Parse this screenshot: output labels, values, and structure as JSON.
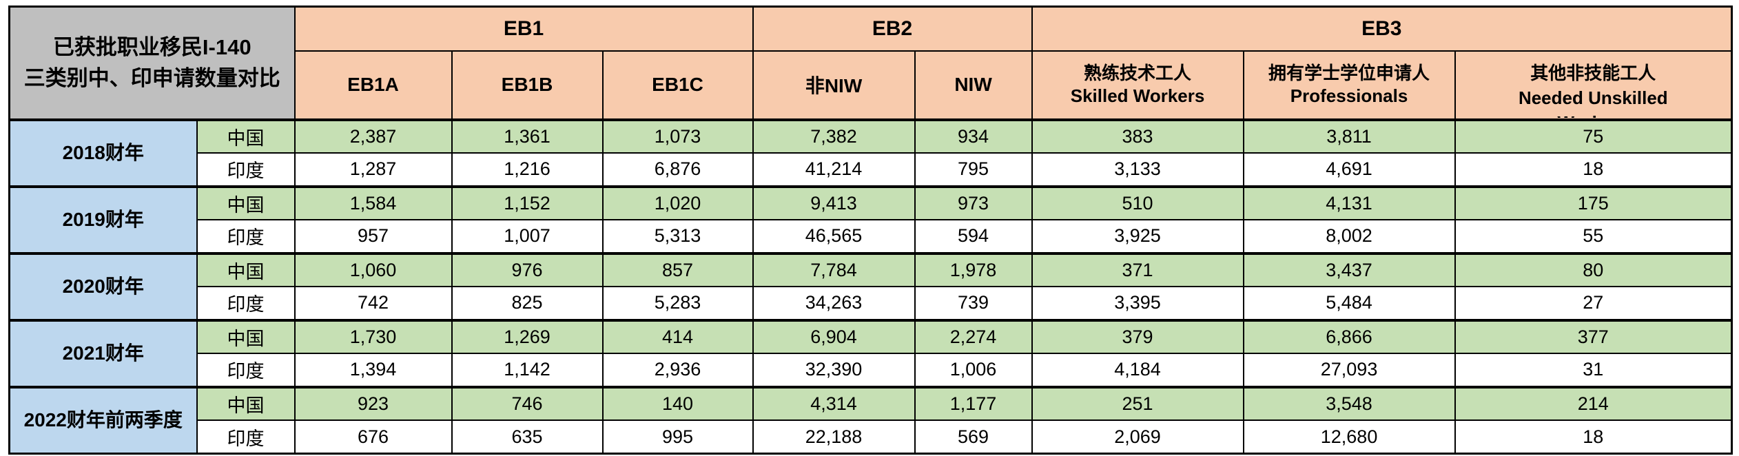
{
  "table": {
    "title_line1": "已获批职业移民I-140",
    "title_line2": "三类别中、印申请数量对比",
    "groups": [
      {
        "label": "EB1"
      },
      {
        "label": "EB2"
      },
      {
        "label": "EB3"
      }
    ],
    "subcolumns": [
      {
        "label": "EB1A"
      },
      {
        "label": "EB1B"
      },
      {
        "label": "EB1C"
      },
      {
        "label": "非NIW"
      },
      {
        "label": "NIW"
      },
      {
        "zh": "熟练技术工人",
        "en": "Skilled Workers"
      },
      {
        "zh": "拥有学士学位申请人",
        "en": "Professionals"
      },
      {
        "zh": "其他非技能工人",
        "en": "Needed Unskilled",
        "en2": "Workers"
      }
    ],
    "colors": {
      "title_bg": "#BFBFBF",
      "header_bg": "#F8CBAD",
      "year_bg": "#BDD7EE",
      "china_row_bg": "#C6E0B4",
      "india_row_bg": "#FFFFFF",
      "border": "#000000"
    }
  },
  "chart_data": {
    "type": "table",
    "title": "已获批职业移民I-140 三类别中、印申请数量对比",
    "column_groups": [
      {
        "label": "EB1",
        "span": 3
      },
      {
        "label": "EB2",
        "span": 2
      },
      {
        "label": "EB3",
        "span": 3
      }
    ],
    "columns": [
      "EB1A",
      "EB1B",
      "EB1C",
      "非NIW",
      "NIW",
      "熟练技术工人 Skilled Workers",
      "拥有学士学位申请人 Professionals",
      "其他非技能工人 Needed Unskilled Workers"
    ],
    "rows": [
      {
        "fiscal_year": "2018财年",
        "country": "中国",
        "values": [
          2387,
          1361,
          1073,
          7382,
          934,
          383,
          3811,
          75
        ]
      },
      {
        "fiscal_year": "2018财年",
        "country": "印度",
        "values": [
          1287,
          1216,
          6876,
          41214,
          795,
          3133,
          4691,
          18
        ]
      },
      {
        "fiscal_year": "2019财年",
        "country": "中国",
        "values": [
          1584,
          1152,
          1020,
          9413,
          973,
          510,
          4131,
          175
        ]
      },
      {
        "fiscal_year": "2019财年",
        "country": "印度",
        "values": [
          957,
          1007,
          5313,
          46565,
          594,
          3925,
          8002,
          55
        ]
      },
      {
        "fiscal_year": "2020财年",
        "country": "中国",
        "values": [
          1060,
          976,
          857,
          7784,
          1978,
          371,
          3437,
          80
        ]
      },
      {
        "fiscal_year": "2020财年",
        "country": "印度",
        "values": [
          742,
          825,
          5283,
          34263,
          739,
          3395,
          5484,
          27
        ]
      },
      {
        "fiscal_year": "2021财年",
        "country": "中国",
        "values": [
          1730,
          1269,
          414,
          6904,
          2274,
          379,
          6866,
          377
        ]
      },
      {
        "fiscal_year": "2021财年",
        "country": "印度",
        "values": [
          1394,
          1142,
          2936,
          32390,
          1006,
          4184,
          27093,
          31
        ]
      },
      {
        "fiscal_year": "2022财年前两季度",
        "country": "中国",
        "values": [
          923,
          746,
          140,
          4314,
          1177,
          251,
          3548,
          214
        ]
      },
      {
        "fiscal_year": "2022财年前两季度",
        "country": "印度",
        "values": [
          676,
          635,
          995,
          22188,
          569,
          2069,
          12680,
          18
        ]
      }
    ]
  }
}
